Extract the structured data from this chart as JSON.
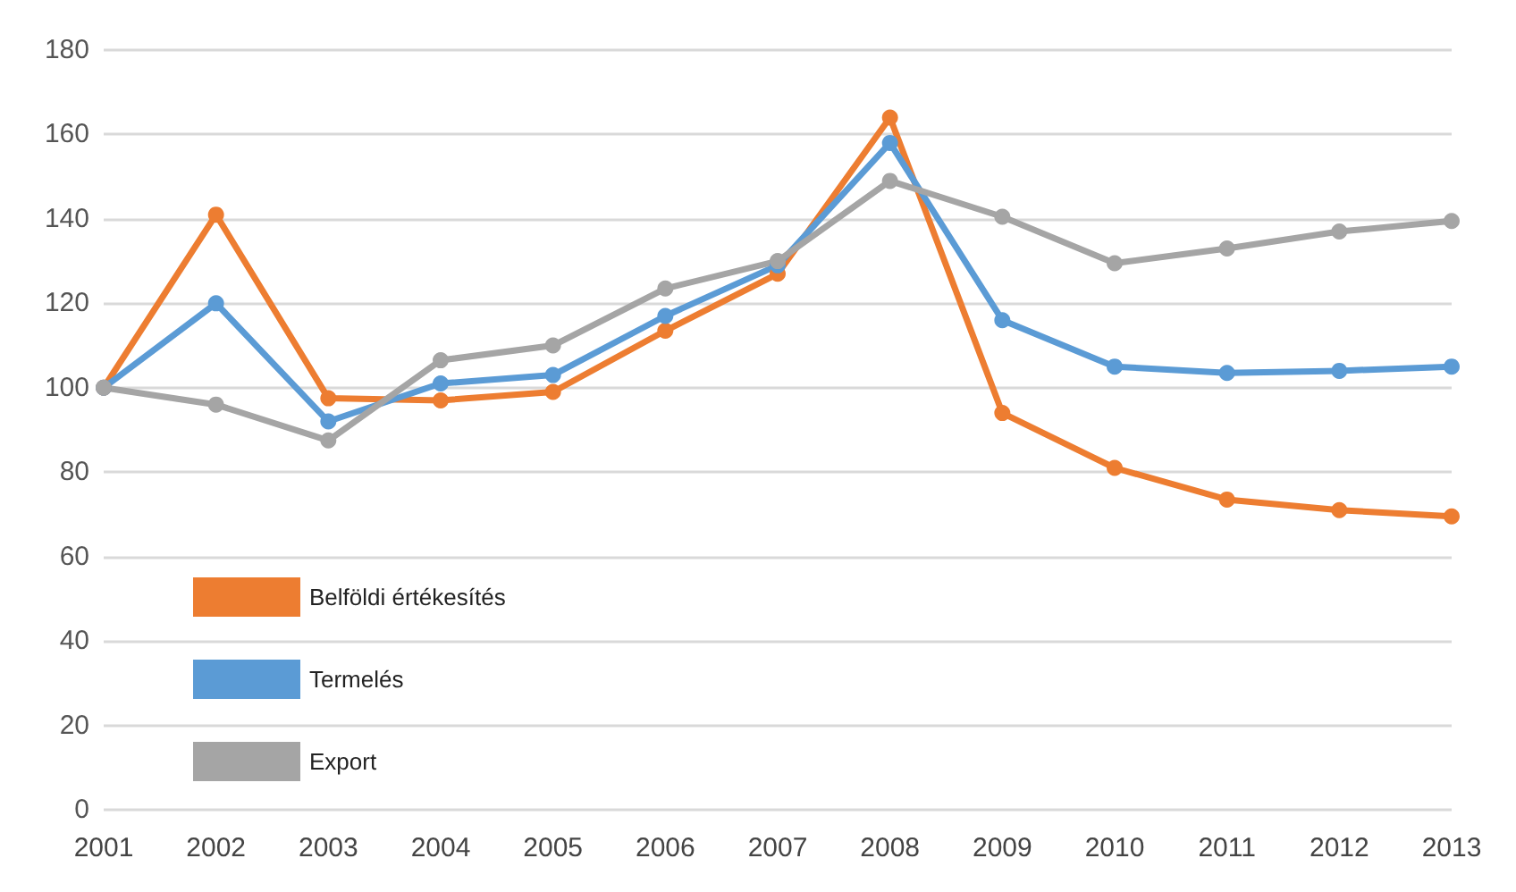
{
  "chart_data": {
    "type": "line",
    "categories": [
      "2001",
      "2002",
      "2003",
      "2004",
      "2005",
      "2006",
      "2007",
      "2008",
      "2009",
      "2010",
      "2011",
      "2012",
      "2013"
    ],
    "series": [
      {
        "name": "Belföldi értékesítés",
        "color": "#ed7d31",
        "values": [
          100,
          141,
          97.5,
          97,
          99,
          113.5,
          127,
          164,
          94,
          81,
          73.5,
          71,
          69.5
        ]
      },
      {
        "name": "Termelés",
        "color": "#5b9bd5",
        "values": [
          100,
          120,
          92,
          101,
          103,
          117,
          129,
          158,
          116,
          105,
          103.5,
          104,
          105
        ]
      },
      {
        "name": "Export",
        "color": "#a5a5a5",
        "values": [
          100,
          96,
          87.5,
          106.5,
          110,
          123.5,
          130,
          149,
          140.5,
          129.5,
          133,
          137,
          139.5
        ]
      }
    ],
    "ylim": [
      0,
      180
    ],
    "yticks": [
      0,
      20,
      40,
      60,
      80,
      100,
      120,
      140,
      160,
      180
    ],
    "grid": "y",
    "legend": "left",
    "marker": "circle",
    "line_style": "solid"
  }
}
